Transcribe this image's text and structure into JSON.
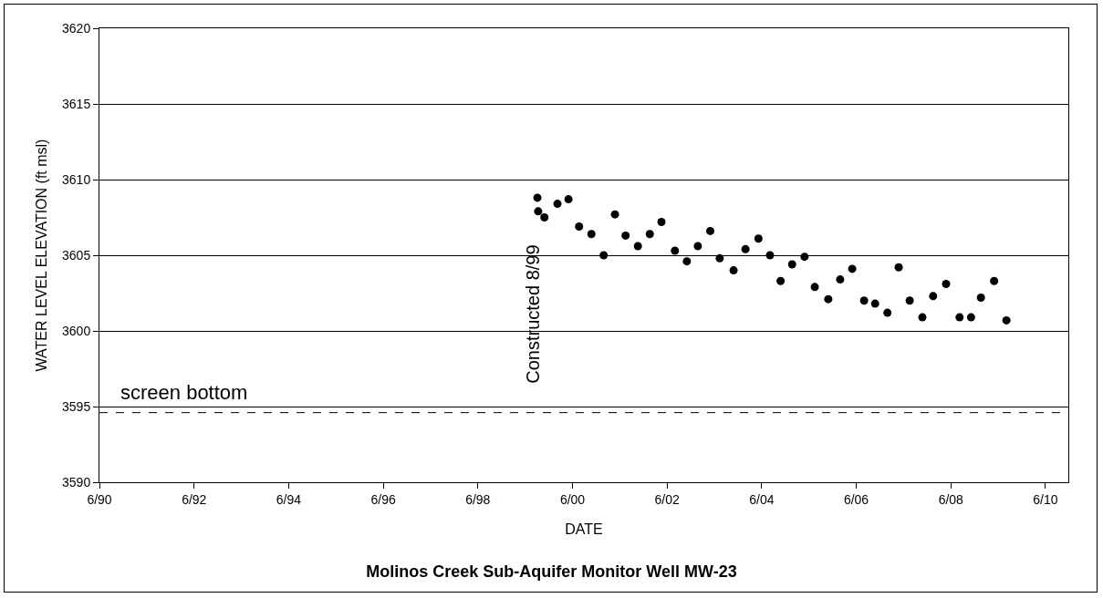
{
  "chart_data": {
    "type": "scatter",
    "title": "Molinos Creek Sub-Aquifer Monitor Well MW-23",
    "xlabel": "DATE",
    "ylabel": "WATER LEVEL ELEVATION (ft msl)",
    "x": [
      "1999-09-04",
      "1999-09-10",
      "1999-10-28",
      "2000-02-06",
      "2000-05-01",
      "2000-07-22",
      "2000-10-25",
      "2001-01-28",
      "2001-04-25",
      "2001-07-16",
      "2001-10-19",
      "2002-01-19",
      "2002-04-19",
      "2002-08-01",
      "2002-11-01",
      "2003-01-25",
      "2003-05-01",
      "2003-07-13",
      "2003-10-28",
      "2004-01-28",
      "2004-05-07",
      "2004-08-04",
      "2004-10-25",
      "2005-01-22",
      "2005-04-28",
      "2005-07-16",
      "2005-10-28",
      "2006-01-28",
      "2006-05-01",
      "2006-08-01",
      "2006-10-25",
      "2007-01-28",
      "2007-04-25",
      "2007-07-19",
      "2007-10-25",
      "2008-01-16",
      "2008-04-25",
      "2008-08-07",
      "2008-11-04",
      "2009-01-19",
      "2009-05-01",
      "2009-08-04"
    ],
    "series": [
      {
        "color": "#000000",
        "values": [
          3608.8,
          3607.9,
          3607.5,
          3608.4,
          3608.7,
          3606.9,
          3606.4,
          3605.0,
          3607.7,
          3606.3,
          3605.6,
          3606.4,
          3607.2,
          3605.3,
          3604.6,
          3605.6,
          3606.6,
          3604.8,
          3604.0,
          3605.4,
          3606.1,
          3605.0,
          3603.3,
          3604.4,
          3604.9,
          3602.9,
          3602.1,
          3603.4,
          3604.1,
          3602.0,
          3601.8,
          3601.2,
          3604.2,
          3602.0,
          3600.9,
          3602.3,
          3603.1,
          3600.9,
          3600.9,
          3602.2,
          3603.3,
          3600.7
        ]
      }
    ],
    "marker": "circle",
    "xlim": [
      "1990-06-01",
      "2010-11-25"
    ],
    "xticks": [
      {
        "value": "1990-06-01",
        "label": "6/90"
      },
      {
        "value": "1992-06-01",
        "label": "6/92"
      },
      {
        "value": "1994-06-01",
        "label": "6/94"
      },
      {
        "value": "1996-06-01",
        "label": "6/96"
      },
      {
        "value": "1998-06-01",
        "label": "6/98"
      },
      {
        "value": "2000-06-01",
        "label": "6/00"
      },
      {
        "value": "2002-06-01",
        "label": "6/02"
      },
      {
        "value": "2004-06-01",
        "label": "6/04"
      },
      {
        "value": "2006-06-01",
        "label": "6/06"
      },
      {
        "value": "2008-06-01",
        "label": "6/08"
      },
      {
        "value": "2010-06-01",
        "label": "6/10"
      }
    ],
    "ylim": [
      3590,
      3620
    ],
    "yticks": [
      3590,
      3595,
      3600,
      3605,
      3610,
      3615,
      3620
    ],
    "grid": "y",
    "ref_lines": [
      {
        "axis": "y",
        "value": 3594.6,
        "label": "screen bottom",
        "color": "#000000",
        "line_style": "dashed"
      }
    ],
    "annotations": [
      "Constructed 8/99"
    ]
  }
}
